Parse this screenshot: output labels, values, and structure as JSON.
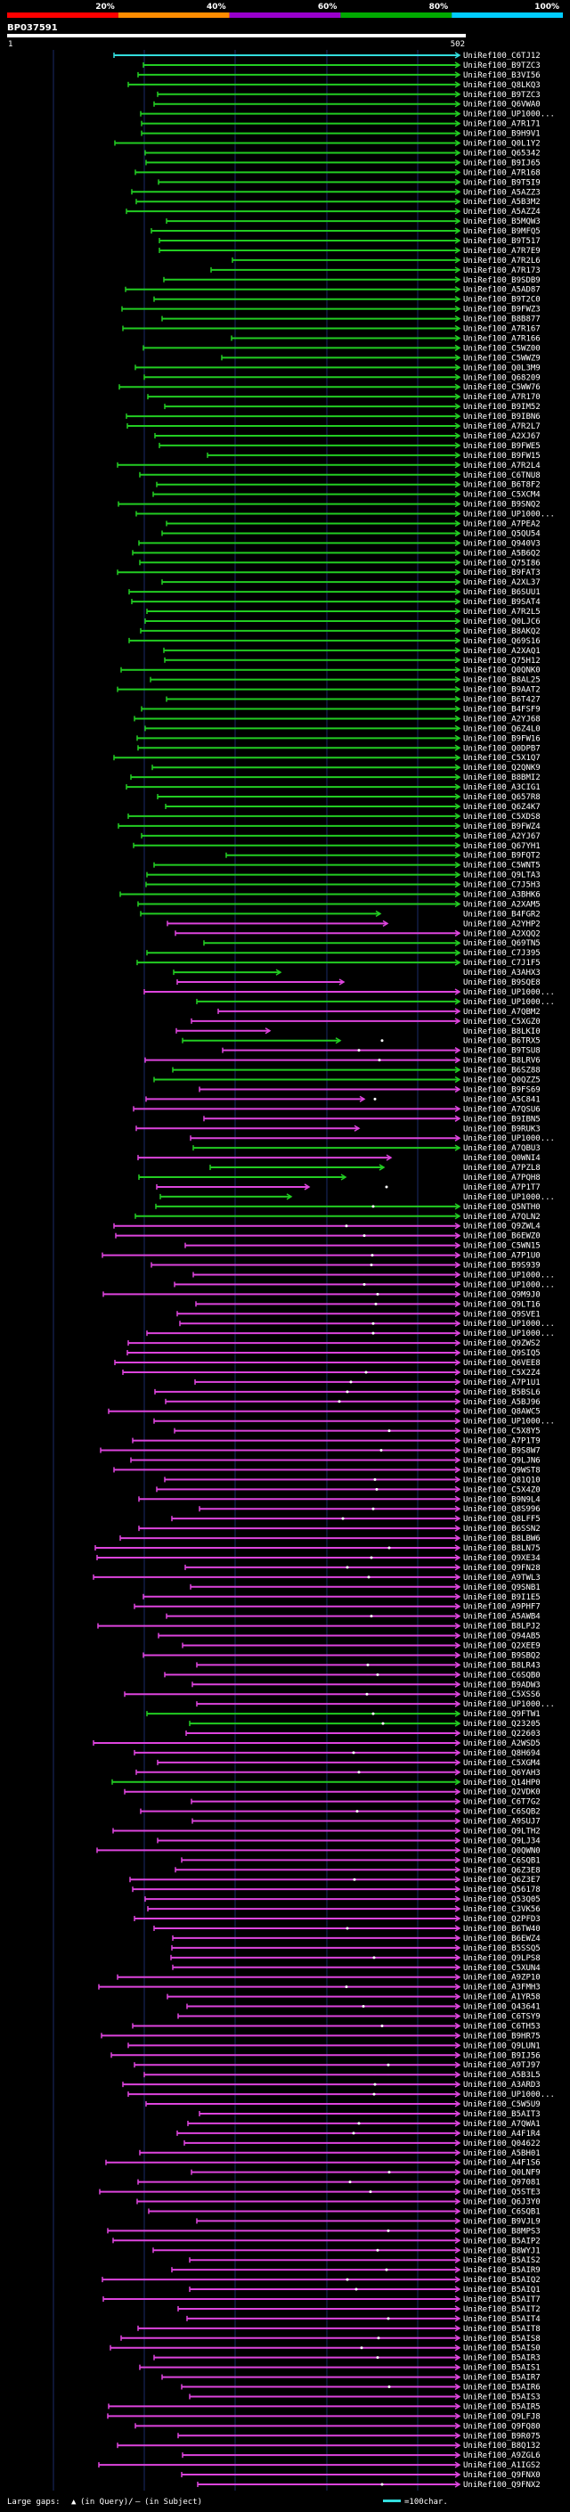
{
  "chart_data": {
    "type": "alignment-overview",
    "query_id": "BP037591",
    "query_start": "1",
    "query_end": "502",
    "identity_scale": [
      "20%",
      "40%",
      "60%",
      "80%",
      "100%"
    ],
    "scale_colors": [
      "#ff0000",
      "#ff8c00",
      "#9900cc",
      "#00aa00",
      "#00ccff"
    ],
    "series_colors": {
      "green": "#22cc22",
      "magenta": "#dd44dd",
      "cyan": "#33dddd"
    },
    "legend": {
      "gaps_label": "Large gaps:",
      "query_gap_text": "(in Query)/",
      "subject_gap_text": "(in Subject)",
      "length_label": "=100char."
    },
    "hit_labels": [
      "UniRef100_C6TJ12",
      "UniRef100_B9TZC3",
      "UniRef100_B3VI56",
      "UniRef100_Q8LKQ3",
      "UniRef100_B9TZC3",
      "UniRef100_Q6VWA0",
      "UniRef100_UP1000...",
      "UniRef100_A7R171",
      "UniRef100_B9H9V1",
      "UniRef100_Q0L1Y2",
      "UniRef100_Q65342",
      "UniRef100_B9IJ65",
      "UniRef100_A7R168",
      "UniRef100_B9T5I9",
      "UniRef100_A5AZZ3",
      "UniRef100_A5B3M2",
      "UniRef100_A5AZZ4",
      "UniRef100_B5MQW3",
      "UniRef100_B9MFQ5",
      "UniRef100_B9T517",
      "UniRef100_A7R7E9",
      "UniRef100_A7R2L6",
      "UniRef100_A7R173",
      "UniRef100_B9SDB9",
      "UniRef100_A5AD87",
      "UniRef100_B9T2C0",
      "UniRef100_B9FWZ3",
      "UniRef100_B8B877",
      "UniRef100_A7R167",
      "UniRef100_A7R166",
      "UniRef100_C5WZ00",
      "UniRef100_C5WWZ9",
      "UniRef100_Q0L3M9",
      "UniRef100_Q68209",
      "UniRef100_C5WW76",
      "UniRef100_A7R170",
      "UniRef100_B9IM52",
      "UniRef100_B9IBN6",
      "UniRef100_A7R2L7",
      "UniRef100_A2XJ67",
      "UniRef100_B9FWE5",
      "UniRef100_B9FW15",
      "UniRef100_A7R2L4",
      "UniRef100_C6TNU8",
      "UniRef100_B6T8F2",
      "UniRef100_C5XCM4",
      "UniRef100_B9SNQ2",
      "UniRef100_UP1000...",
      "UniRef100_A7PEA2",
      "UniRef100_Q5QU54",
      "UniRef100_Q940V3",
      "UniRef100_A5B6Q2",
      "UniRef100_Q75I86",
      "UniRef100_B9FAT3",
      "UniRef100_A2XL37",
      "UniRef100_B6SUU1",
      "UniRef100_B9SAT4",
      "UniRef100_A7R2L5",
      "UniRef100_Q0LJC6",
      "UniRef100_B8AKQ2",
      "UniRef100_Q69S16",
      "UniRef100_A2XAQ1",
      "UniRef100_Q75H12",
      "UniRef100_Q0QNK0",
      "UniRef100_B8AL25",
      "UniRef100_B9AAT2",
      "UniRef100_B6T427",
      "UniRef100_B4FSF9",
      "UniRef100_A2YJ68",
      "UniRef100_Q6Z4L0",
      "UniRef100_B9FW16",
      "UniRef100_Q0DPB7",
      "UniRef100_C5X1Q7",
      "UniRef100_Q2QNK9",
      "UniRef100_B8BMI2",
      "UniRef100_A3CIG1",
      "UniRef100_Q657R8",
      "UniRef100_Q6Z4K7",
      "UniRef100_C5XDS8",
      "UniRef100_B9FWZ4",
      "UniRef100_A2YJ67",
      "UniRef100_Q67YH1",
      "UniRef100_B9FQT2",
      "UniRef100_C5WNT5",
      "UniRef100_Q9LTA3",
      "UniRef100_C7J5H3",
      "UniRef100_A3BHK6",
      "UniRef100_A2XAM5",
      "UniRef100_B4FGR2",
      "UniRef100_A2YHP2",
      "UniRef100_A2XQQ2",
      "UniRef100_Q69TN5",
      "UniRef100_C7J395",
      "UniRef100_C7J1F5",
      "UniRef100_A3AHX3",
      "UniRef100_B9SQE8",
      "UniRef100_UP1000...",
      "UniRef100_UP1000...",
      "UniRef100_A7QBM2",
      "UniRef100_C5XGZ0",
      "UniRef100_B8LKI0",
      "UniRef100_B6TRX5",
      "UniRef100_B9TSU8",
      "UniRef100_B8LRV6",
      "UniRef100_B6SZ88",
      "UniRef100_Q0QZZ5",
      "UniRef100_B9FS69",
      "UniRef100_A5C841",
      "UniRef100_A7QSU6",
      "UniRef100_B9IBN5",
      "UniRef100_B9RUK3",
      "UniRef100_UP1000...",
      "UniRef100_A7QBU3",
      "UniRef100_Q0WNI4",
      "UniRef100_A7PZL8",
      "UniRef100_A7PQH8",
      "UniRef100_A7P1T7",
      "UniRef100_UP1000...",
      "UniRef100_Q5NTH0",
      "UniRef100_A7QLN2",
      "UniRef100_Q9ZWL4",
      "UniRef100_B6EWZ0",
      "UniRef100_C5WN15",
      "UniRef100_A7P1U0",
      "UniRef100_B9S939",
      "UniRef100_UP1000...",
      "UniRef100_UP1000...",
      "UniRef100_Q9M9J0",
      "UniRef100_Q9LT16",
      "UniRef100_Q9SVE1",
      "UniRef100_UP1000...",
      "UniRef100_UP1000...",
      "UniRef100_Q9ZWS2",
      "UniRef100_Q9SIQ5",
      "UniRef100_Q6VEE8",
      "UniRef100_C5X2Z4",
      "UniRef100_A7P1U1",
      "UniRef100_B5BSL6",
      "UniRef100_A5BJ96",
      "UniRef100_Q8AWC5",
      "UniRef100_UP1000...",
      "UniRef100_C5X8Y5",
      "UniRef100_A7P1T9",
      "UniRef100_B9S8W7",
      "UniRef100_Q9LJN6",
      "UniRef100_Q9WST8",
      "UniRef100_Q81Q10",
      "UniRef100_C5X4Z0",
      "UniRef100_B9N9L4",
      "UniRef100_Q8S996",
      "UniRef100_Q8LFF5",
      "UniRef100_B6SSN2",
      "UniRef100_B8LBW6",
      "UniRef100_B8LN75",
      "UniRef100_Q9XE34",
      "UniRef100_Q9FN28",
      "UniRef100_A9TWL3",
      "UniRef100_Q9SNB1",
      "UniRef100_B9I1E5",
      "UniRef100_A9PHF7",
      "UniRef100_A5AWB4",
      "UniRef100_B8LPJ2",
      "UniRef100_Q94AB5",
      "UniRef100_Q2XEE9",
      "UniRef100_B9SBQ2",
      "UniRef100_B8LR43",
      "UniRef100_C6SQB0",
      "UniRef100_B9ADW3",
      "UniRef100_C5XSS6",
      "UniRef100_UP1000...",
      "UniRef100_Q9FTW1",
      "UniRef100_Q23205",
      "UniRef100_Q22603",
      "UniRef100_A2WSD5",
      "UniRef100_Q8H694",
      "UniRef100_C5XGM4",
      "UniRef100_Q6YAH3",
      "UniRef100_Q14HP0",
      "UniRef100_Q2VDK0",
      "UniRef100_C6T7G2",
      "UniRef100_C6SQB2",
      "UniRef100_A9SUJ7",
      "UniRef100_Q9LTH2",
      "UniRef100_Q9LJ34",
      "UniRef100_Q0QWN0",
      "UniRef100_C6SQB1",
      "UniRef100_Q6Z3E8",
      "UniRef100_Q6Z3E7",
      "UniRef100_Q56178",
      "UniRef100_Q53Q05",
      "UniRef100_C3VK56",
      "UniRef100_Q2PFD3",
      "UniRef100_B6TW40",
      "UniRef100_B6EWZ4",
      "UniRef100_B5SSQ5",
      "UniRef100_Q9LPS8",
      "UniRef100_C5XUN4",
      "UniRef100_A9ZP10",
      "UniRef100_A3FMH3",
      "UniRef100_A1YR58",
      "UniRef100_Q43641",
      "UniRef100_C6TSY9",
      "UniRef100_C6TH53",
      "UniRef100_B9HR75",
      "UniRef100_Q9LUN1",
      "UniRef100_B9IJ56",
      "UniRef100_A9TJ97",
      "UniRef100_A5B3L5",
      "UniRef100_A3ARD3",
      "UniRef100_UP1000...",
      "UniRef100_C5W5U9",
      "UniRef100_B5AIT3",
      "UniRef100_A7QWA1",
      "UniRef100_A4F1R4",
      "UniRef100_Q04622",
      "UniRef100_A5BH01",
      "UniRef100_A4F1S6",
      "UniRef100_Q0LNF9",
      "UniRef100_Q97081",
      "UniRef100_Q5STE3",
      "UniRef100_Q6J3Y0",
      "UniRef100_C6SQB1",
      "UniRef100_B9VJL9",
      "UniRef100_B8MPS3",
      "UniRef100_B5AIP2",
      "UniRef100_B8WYJ1",
      "UniRef100_B5AIS2",
      "UniRef100_B5AIR9",
      "UniRef100_B5AIQ2",
      "UniRef100_B5AIQ1",
      "UniRef100_B5AIT7",
      "UniRef100_B5AIT2",
      "UniRef100_B5AIT4",
      "UniRef100_B5AIT8",
      "UniRef100_B5AIS8",
      "UniRef100_B5AIS0",
      "UniRef100_B5AIR3",
      "UniRef100_B5AIS1",
      "UniRef100_B5AIR7",
      "UniRef100_B5AIR6",
      "UniRef100_B5AIS3",
      "UniRef100_B5AIR5",
      "UniRef100_Q9LFJ8",
      "UniRef100_Q9FQ80",
      "UniRef100_B9R075",
      "UniRef100_B8Q132",
      "UniRef100_A9ZGL6",
      "UniRef100_A1IGS2",
      "UniRef100_Q9FNX0",
      "UniRef100_Q9FNX2"
    ]
  }
}
